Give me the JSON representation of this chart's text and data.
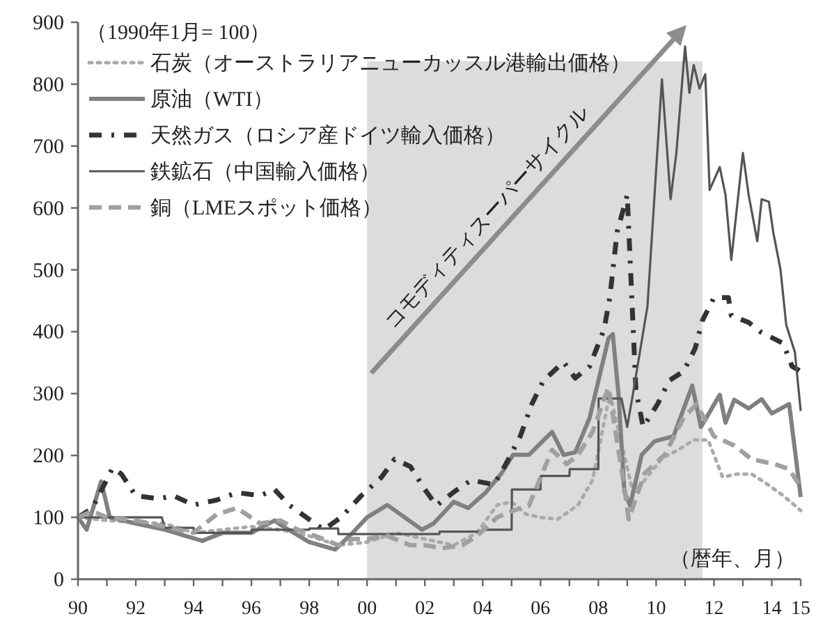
{
  "chart_data": {
    "type": "line",
    "xlabel": "（暦年、月）",
    "ylabel": "（1990年1月= 100）",
    "annotations": [
      "コモディティスーパーサイクル"
    ],
    "xlim": [
      1990,
      2015
    ],
    "ylim": [
      0,
      900
    ],
    "yticks": [
      0,
      100,
      200,
      300,
      400,
      500,
      600,
      700,
      800,
      900
    ],
    "xticks": [
      {
        "value": 1990,
        "label": "90"
      },
      {
        "value": 1991,
        "label": null
      },
      {
        "value": 1992,
        "label": "92"
      },
      {
        "value": 1993,
        "label": null
      },
      {
        "value": 1994,
        "label": "94"
      },
      {
        "value": 1995,
        "label": null
      },
      {
        "value": 1996,
        "label": "96"
      },
      {
        "value": 1997,
        "label": null
      },
      {
        "value": 1998,
        "label": "98"
      },
      {
        "value": 1999,
        "label": null
      },
      {
        "value": 2000,
        "label": "00"
      },
      {
        "value": 2001,
        "label": null
      },
      {
        "value": 2002,
        "label": "02"
      },
      {
        "value": 2003,
        "label": null
      },
      {
        "value": 2004,
        "label": "04"
      },
      {
        "value": 2005,
        "label": null
      },
      {
        "value": 2006,
        "label": "06"
      },
      {
        "value": 2007,
        "label": null
      },
      {
        "value": 2008,
        "label": "08"
      },
      {
        "value": 2009,
        "label": null
      },
      {
        "value": 2010,
        "label": "10"
      },
      {
        "value": 2011,
        "label": null
      },
      {
        "value": 2012,
        "label": "12"
      },
      {
        "value": 2013,
        "label": null
      },
      {
        "value": 2014,
        "label": "14"
      },
      {
        "value": 2015,
        "label": "15"
      }
    ],
    "grid": false,
    "legend": "top left",
    "marker": "none",
    "bands": [
      {
        "axis": "x",
        "from": 2000,
        "to": 2011.6,
        "color": "#dcdcdc"
      }
    ],
    "series": [
      {
        "name": "石炭（オーストラリアニューカッスル港輸出価格）",
        "color": "#aaaaaa",
        "line_style": "dotted",
        "x": [
          1990,
          1991,
          1992,
          1993,
          1994,
          1995,
          1996,
          1997,
          1998,
          1999,
          2000,
          2001,
          2002,
          2003,
          2003.8,
          2004.5,
          2005,
          2005.5,
          2006,
          2006.6,
          2007.3,
          2007.8,
          2008.4,
          2008.9,
          2009.2,
          2009.6,
          2010.2,
          2010.8,
          2011.3,
          2011.8,
          2012.3,
          2012.8,
          2013.3,
          2013.8,
          2014.4,
          2015
        ],
        "values": [
          100,
          95,
          92,
          90,
          75,
          80,
          85,
          80,
          70,
          55,
          60,
          75,
          65,
          55,
          75,
          120,
          125,
          105,
          100,
          97,
          120,
          160,
          300,
          200,
          140,
          160,
          195,
          210,
          225,
          225,
          165,
          170,
          170,
          155,
          135,
          111
        ]
      },
      {
        "name": "原油（WTI）",
        "color": "#808080",
        "line_style": "solid",
        "x": [
          1990,
          1990.3,
          1990.8,
          1991.1,
          1992,
          1993,
          1994.3,
          1995,
          1996,
          1996.8,
          1997,
          1998,
          1998.9,
          1999.5,
          2000,
          2000.7,
          2001.9,
          2002.3,
          2003,
          2003.5,
          2004.1,
          2004.65,
          2005.05,
          2005.6,
          2006.4,
          2006.8,
          2007.2,
          2007.7,
          2008.35,
          2008.5,
          2008.7,
          2008.9,
          2009.1,
          2009.5,
          2009.95,
          2010.6,
          2011.25,
          2011.55,
          2012.2,
          2012.4,
          2012.7,
          2013.2,
          2013.65,
          2014,
          2014.6,
          2014.8,
          2015
        ],
        "values": [
          100,
          80,
          158,
          100,
          90,
          80,
          62,
          75,
          75,
          95,
          88,
          60,
          48,
          75,
          100,
          120,
          80,
          90,
          125,
          115,
          140,
          171,
          201,
          201,
          238,
          201,
          205,
          261,
          389,
          396,
          298,
          141,
          119,
          201,
          223,
          231,
          313,
          246,
          298,
          253,
          290,
          276,
          291,
          268,
          283,
          209,
          133
        ]
      },
      {
        "name": "天然ガス（ロシア産ドイツ輸入価格）",
        "color": "#333333",
        "line_style": "dashdot",
        "x": [
          1990,
          1990.5,
          1991.2,
          1991.5,
          1992,
          1992.8,
          1993.3,
          1994,
          1994.8,
          1995.5,
          1996.3,
          1996.8,
          1997.3,
          1997.9,
          1998.5,
          1999.1,
          1999.8,
          2000.5,
          2000.95,
          2001.5,
          2002,
          2002.4,
          2003,
          2003.6,
          2004.4,
          2004.8,
          2005.3,
          2005.7,
          2006.1,
          2006.8,
          2007.2,
          2007.7,
          2008.2,
          2008.4,
          2008.65,
          2009,
          2009.1,
          2009.3,
          2009.55,
          2010.05,
          2010.45,
          2010.95,
          2011.35,
          2011.6,
          2012,
          2012.5,
          2012.6,
          2013.2,
          2013.6,
          2014.4,
          2014.7,
          2015
        ],
        "values": [
          100,
          115,
          180,
          170,
          135,
          130,
          135,
          120,
          128,
          140,
          135,
          145,
          120,
          100,
          80,
          100,
          135,
          165,
          194,
          182,
          145,
          119,
          141,
          160,
          153,
          186,
          231,
          283,
          321,
          351,
          325,
          344,
          404,
          456,
          561,
          621,
          516,
          306,
          246,
          283,
          321,
          336,
          373,
          418,
          455,
          455,
          426,
          415,
          400,
          381,
          344,
          336
        ]
      },
      {
        "name": "鉄鉱石（中国輸入価格）",
        "color": "#555555",
        "line_style": "solid",
        "x": [
          1990,
          1992.9,
          1993,
          1994,
          1994.01,
          1996,
          1996.01,
          1998,
          1998.01,
          1999,
          1999.01,
          2002.5,
          2002.51,
          2004,
          2004.01,
          2005,
          2005.01,
          2006,
          2006.01,
          2007,
          2007.01,
          2008,
          2008.01,
          2008.8,
          2009,
          2009.2,
          2009.7,
          2010.2,
          2010.5,
          2010.7,
          2011,
          2011.15,
          2011.3,
          2011.5,
          2011.7,
          2011.85,
          2012.2,
          2012.4,
          2012.6,
          2013,
          2013.2,
          2013.5,
          2013.65,
          2013.9,
          2014.05,
          2014.3,
          2014.5,
          2014.8,
          2015
        ],
        "values": [
          100,
          100,
          83,
          83,
          75,
          75,
          80,
          80,
          82,
          82,
          73,
          73,
          77,
          77,
          80,
          80,
          145,
          145,
          167,
          167,
          178,
          178,
          292,
          292,
          246,
          300,
          441,
          808,
          614,
          689,
          861,
          786,
          831,
          793,
          816,
          629,
          666,
          621,
          516,
          689,
          621,
          546,
          614,
          610,
          561,
          501,
          411,
          367,
          272
        ]
      },
      {
        "name": "銅（LMEスポット価格）",
        "color": "#a0a0a0",
        "line_style": "dashed",
        "x": [
          1990,
          1990.5,
          1991,
          1992,
          1993,
          1994,
          1994.8,
          1995.5,
          1996.3,
          1997,
          1997.6,
          1998.5,
          1999,
          1999.5,
          2000,
          2000.7,
          2001.5,
          2002,
          2002.6,
          2003.3,
          2003.8,
          2004.5,
          2005,
          2005.6,
          2006.4,
          2006.9,
          2007.3,
          2007.8,
          2008.35,
          2008.9,
          2009.05,
          2009.6,
          2010.3,
          2010.95,
          2011.4,
          2012,
          2012.7,
          2013.3,
          2014.1,
          2014.6,
          2015
        ],
        "values": [
          100,
          110,
          100,
          95,
          85,
          75,
          105,
          115,
          90,
          95,
          80,
          65,
          55,
          65,
          65,
          70,
          55,
          55,
          50,
          55,
          70,
          100,
          110,
          119,
          209,
          186,
          201,
          238,
          310,
          149,
          97,
          171,
          201,
          261,
          283,
          231,
          216,
          194,
          186,
          178,
          149
        ]
      }
    ]
  }
}
